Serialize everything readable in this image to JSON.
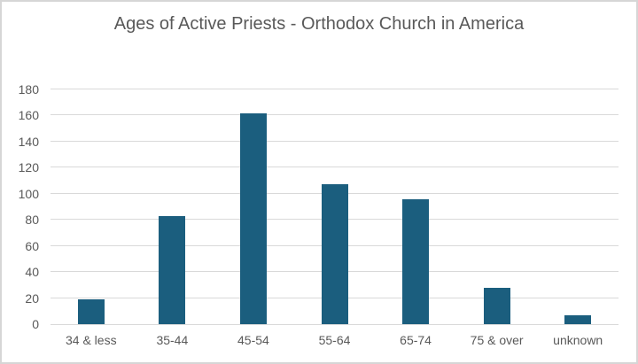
{
  "chart_data": {
    "type": "bar",
    "title": "Ages of Active Priests - Orthodox Church in America",
    "categories": [
      "34 & less",
      "35-44",
      "45-54",
      "55-64",
      "65-74",
      "75 & over",
      "unknown"
    ],
    "values": [
      19,
      83,
      162,
      107,
      96,
      28,
      7
    ],
    "xlabel": "",
    "ylabel": "",
    "ylim": [
      0,
      180
    ],
    "ytick_step": 20,
    "y_ticks": [
      0,
      20,
      40,
      60,
      80,
      100,
      120,
      140,
      160,
      180
    ],
    "grid": true,
    "legend": false,
    "layout_hints": {
      "legend_position": "none",
      "title_position": "top-center"
    },
    "colors": {
      "bar": "#1B5E7E",
      "gridline": "#D9D9D9",
      "axis_line": "#D9D9D9",
      "text": "#595959",
      "background": "#FFFFFF",
      "border": "#D6D6D6"
    }
  }
}
